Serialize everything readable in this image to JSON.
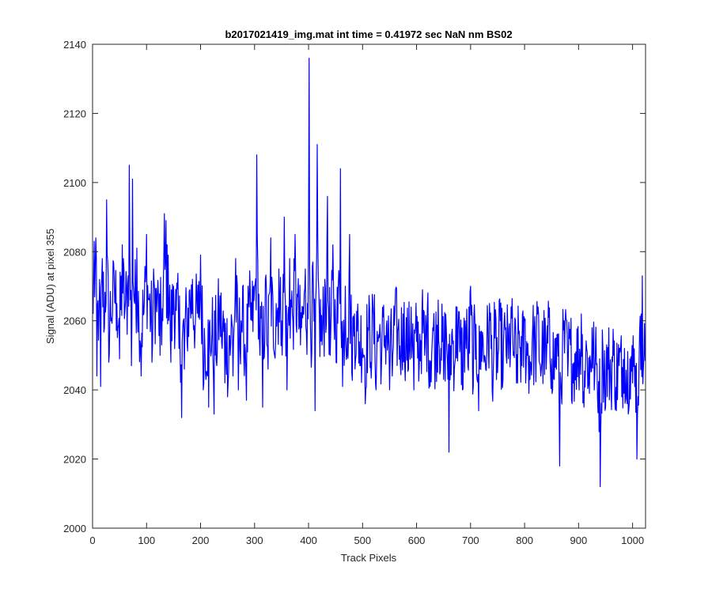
{
  "chart_data": {
    "type": "line",
    "title": "b2017021419_img.mat int time = 0.41972 sec  NaN nm BS02",
    "xlabel": "Track Pixels",
    "ylabel": "Signal (ADU) at pixel 355",
    "xlim": [
      0,
      1024
    ],
    "ylim": [
      2000,
      2140
    ],
    "xticks": [
      0,
      100,
      200,
      300,
      400,
      500,
      600,
      700,
      800,
      900,
      1000
    ],
    "yticks": [
      2000,
      2020,
      2040,
      2060,
      2080,
      2100,
      2120,
      2140
    ],
    "grid": false,
    "series_color": "#0000ff",
    "series": [
      {
        "x_start": 1,
        "x_step": 1,
        "description_points": "1024 samples, values read from the plotted trace",
        "anchors": [
          [
            1,
            2062
          ],
          [
            3,
            2083
          ],
          [
            6,
            2084
          ],
          [
            8,
            2044
          ],
          [
            12,
            2062
          ],
          [
            15,
            2041
          ],
          [
            18,
            2078
          ],
          [
            22,
            2058
          ],
          [
            26,
            2095
          ],
          [
            30,
            2048
          ],
          [
            34,
            2060
          ],
          [
            40,
            2073
          ],
          [
            45,
            2065
          ],
          [
            50,
            2049
          ],
          [
            55,
            2082
          ],
          [
            60,
            2063
          ],
          [
            65,
            2070
          ],
          [
            68,
            2105
          ],
          [
            72,
            2047
          ],
          [
            74,
            2101
          ],
          [
            78,
            2065
          ],
          [
            82,
            2081
          ],
          [
            86,
            2058
          ],
          [
            90,
            2044
          ],
          [
            95,
            2062
          ],
          [
            100,
            2085
          ],
          [
            105,
            2066
          ],
          [
            110,
            2048
          ],
          [
            114,
            2071
          ],
          [
            120,
            2067
          ],
          [
            125,
            2050
          ],
          [
            130,
            2060
          ],
          [
            133,
            2091
          ],
          [
            136,
            2089
          ],
          [
            140,
            2079
          ],
          [
            145,
            2048
          ],
          [
            150,
            2070
          ],
          [
            155,
            2063
          ],
          [
            160,
            2052
          ],
          [
            165,
            2032
          ],
          [
            170,
            2046
          ],
          [
            175,
            2054
          ],
          [
            180,
            2069
          ],
          [
            185,
            2072
          ],
          [
            190,
            2058
          ],
          [
            196,
            2061
          ],
          [
            200,
            2079
          ],
          [
            205,
            2040
          ],
          [
            210,
            2043
          ],
          [
            215,
            2035
          ],
          [
            220,
            2051
          ],
          [
            225,
            2033
          ],
          [
            230,
            2047
          ],
          [
            235,
            2062
          ],
          [
            240,
            2052
          ],
          [
            245,
            2042
          ],
          [
            250,
            2038
          ],
          [
            255,
            2050
          ],
          [
            260,
            2044
          ],
          [
            265,
            2078
          ],
          [
            270,
            2040
          ],
          [
            275,
            2060
          ],
          [
            280,
            2050
          ],
          [
            285,
            2037
          ],
          [
            290,
            2064
          ],
          [
            295,
            2060
          ],
          [
            300,
            2070
          ],
          [
            304,
            2108
          ],
          [
            310,
            2050
          ],
          [
            315,
            2035
          ],
          [
            320,
            2072
          ],
          [
            325,
            2046
          ],
          [
            330,
            2084
          ],
          [
            335,
            2052
          ],
          [
            340,
            2065
          ],
          [
            345,
            2075
          ],
          [
            350,
            2060
          ],
          [
            355,
            2090
          ],
          [
            360,
            2040
          ],
          [
            365,
            2078
          ],
          [
            370,
            2062
          ],
          [
            375,
            2085
          ],
          [
            380,
            2067
          ],
          [
            385,
            2053
          ],
          [
            390,
            2064
          ],
          [
            394,
            2075
          ],
          [
            398,
            2065
          ],
          [
            401,
            2136
          ],
          [
            404,
            2055
          ],
          [
            408,
            2077
          ],
          [
            412,
            2034
          ],
          [
            416,
            2111
          ],
          [
            420,
            2062
          ],
          [
            425,
            2053
          ],
          [
            430,
            2072
          ],
          [
            435,
            2096
          ],
          [
            440,
            2050
          ],
          [
            445,
            2082
          ],
          [
            450,
            2060
          ],
          [
            455,
            2070
          ],
          [
            459,
            2104
          ],
          [
            463,
            2041
          ],
          [
            468,
            2070
          ],
          [
            472,
            2055
          ],
          [
            476,
            2085
          ],
          [
            480,
            2045
          ],
          [
            485,
            2062
          ],
          [
            490,
            2057
          ],
          [
            495,
            2047
          ],
          [
            500,
            2052
          ],
          [
            505,
            2036
          ],
          [
            510,
            2058
          ],
          [
            515,
            2048
          ],
          [
            520,
            2062
          ],
          [
            525,
            2040
          ],
          [
            530,
            2056
          ],
          [
            535,
            2047
          ],
          [
            540,
            2053
          ],
          [
            545,
            2060
          ],
          [
            550,
            2040
          ],
          [
            555,
            2044
          ],
          [
            560,
            2063
          ],
          [
            565,
            2057
          ],
          [
            570,
            2047
          ],
          [
            575,
            2062
          ],
          [
            580,
            2053
          ],
          [
            585,
            2046
          ],
          [
            590,
            2064
          ],
          [
            595,
            2040
          ],
          [
            600,
            2054
          ],
          [
            605,
            2047
          ],
          [
            610,
            2063
          ],
          [
            615,
            2050
          ],
          [
            620,
            2064
          ],
          [
            625,
            2041
          ],
          [
            630,
            2058
          ],
          [
            635,
            2048
          ],
          [
            640,
            2066
          ],
          [
            645,
            2052
          ],
          [
            650,
            2043
          ],
          [
            655,
            2058
          ],
          [
            660,
            2022
          ],
          [
            665,
            2056
          ],
          [
            670,
            2046
          ],
          [
            675,
            2064
          ],
          [
            680,
            2051
          ],
          [
            685,
            2040
          ],
          [
            690,
            2060
          ],
          [
            695,
            2047
          ],
          [
            700,
            2070
          ],
          [
            705,
            2041
          ],
          [
            710,
            2059
          ],
          [
            715,
            2034
          ],
          [
            720,
            2057
          ],
          [
            725,
            2048
          ],
          [
            730,
            2050
          ],
          [
            735,
            2065
          ],
          [
            740,
            2040
          ],
          [
            745,
            2055
          ],
          [
            750,
            2045
          ],
          [
            755,
            2060
          ],
          [
            760,
            2043
          ],
          [
            765,
            2058
          ],
          [
            770,
            2049
          ],
          [
            775,
            2064
          ],
          [
            780,
            2051
          ],
          [
            785,
            2042
          ],
          [
            790,
            2057
          ],
          [
            795,
            2047
          ],
          [
            800,
            2060
          ],
          [
            805,
            2050
          ],
          [
            810,
            2043
          ],
          [
            815,
            2058
          ],
          [
            820,
            2052
          ],
          [
            825,
            2064
          ],
          [
            830,
            2044
          ],
          [
            835,
            2055
          ],
          [
            840,
            2046
          ],
          [
            845,
            2061
          ],
          [
            850,
            2049
          ],
          [
            855,
            2043
          ],
          [
            860,
            2056
          ],
          [
            865,
            2018
          ],
          [
            870,
            2050
          ],
          [
            875,
            2059
          ],
          [
            880,
            2044
          ],
          [
            885,
            2053
          ],
          [
            890,
            2042
          ],
          [
            895,
            2051
          ],
          [
            900,
            2047
          ],
          [
            905,
            2062
          ],
          [
            910,
            2035
          ],
          [
            915,
            2052
          ],
          [
            920,
            2039
          ],
          [
            925,
            2058
          ],
          [
            930,
            2044
          ],
          [
            935,
            2038
          ],
          [
            940,
            2012
          ],
          [
            945,
            2052
          ],
          [
            950,
            2035
          ],
          [
            955,
            2046
          ],
          [
            960,
            2040
          ],
          [
            965,
            2050
          ],
          [
            970,
            2034
          ],
          [
            975,
            2047
          ],
          [
            980,
            2038
          ],
          [
            985,
            2052
          ],
          [
            990,
            2036
          ],
          [
            995,
            2049
          ],
          [
            1000,
            2042
          ],
          [
            1005,
            2047
          ],
          [
            1008,
            2020
          ],
          [
            1012,
            2048
          ],
          [
            1016,
            2062
          ],
          [
            1018,
            2073
          ],
          [
            1021,
            2050
          ],
          [
            1024,
            2052
          ]
        ]
      }
    ]
  }
}
